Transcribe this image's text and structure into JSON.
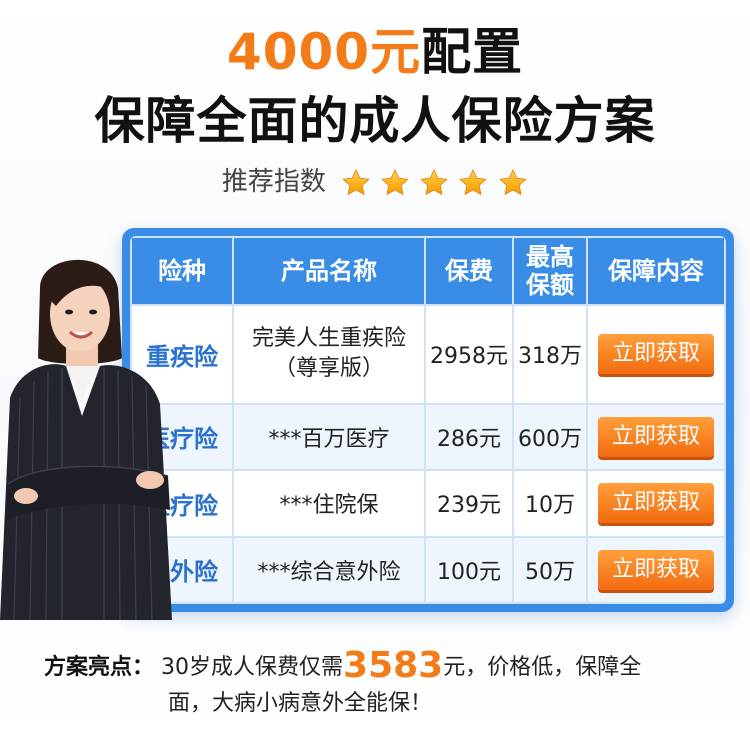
{
  "header": {
    "price": "4000元",
    "config": "配置",
    "title": "保障全面的成人保险方案",
    "rating_label": "推荐指数",
    "rating_stars": 5
  },
  "table": {
    "headers": [
      "险种",
      "产品名称",
      "保费",
      "最高保额",
      "保障内容"
    ],
    "rows": [
      {
        "type": "重疾险",
        "name": "完美人生重疾险（尊享版）",
        "fee": "2958元",
        "amount": "318万",
        "action": "立即获取"
      },
      {
        "type": "医疗险",
        "name": "***百万医疗",
        "fee": "286元",
        "amount": "600万",
        "action": "立即获取"
      },
      {
        "type": "医疗险",
        "name": "***住院保",
        "fee": "239元",
        "amount": "10万",
        "action": "立即获取"
      },
      {
        "type": "意外险",
        "name": "***综合意外险",
        "fee": "100元",
        "amount": "50万",
        "action": "立即获取"
      }
    ]
  },
  "highlight": {
    "label": "方案亮点：",
    "pre": "30岁成人保费仅需",
    "amount": "3583",
    "post": "元，价格低，保障全",
    "line2": "面，大病小病意外全能保！"
  },
  "colors": {
    "accent_orange": "#f47c18",
    "table_blue": "#3a8de6",
    "type_blue": "#2a72cf",
    "star_gold": "#ffb300"
  }
}
